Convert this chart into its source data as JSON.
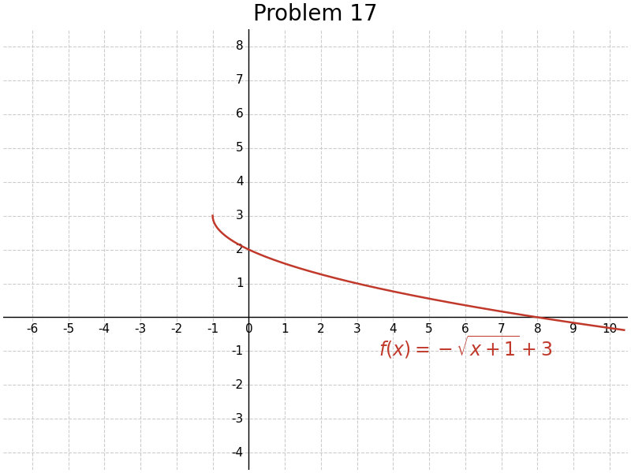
{
  "title": "Problem 17",
  "xlim": [
    -6.8,
    10.5
  ],
  "ylim": [
    -4.5,
    8.5
  ],
  "xticks": [
    -6,
    -5,
    -4,
    -3,
    -2,
    -1,
    0,
    1,
    2,
    3,
    4,
    5,
    6,
    7,
    8,
    9,
    10
  ],
  "yticks": [
    -4,
    -3,
    -2,
    -1,
    1,
    2,
    3,
    4,
    5,
    6,
    7,
    8
  ],
  "curve_color": "#c0392b",
  "curve_linewidth": 1.8,
  "grid_color": "#cccccc",
  "axis_color": "#000000",
  "background_color": "#ffffff",
  "title_fontsize": 20,
  "formula_fontsize": 17,
  "tick_fontsize": 11
}
